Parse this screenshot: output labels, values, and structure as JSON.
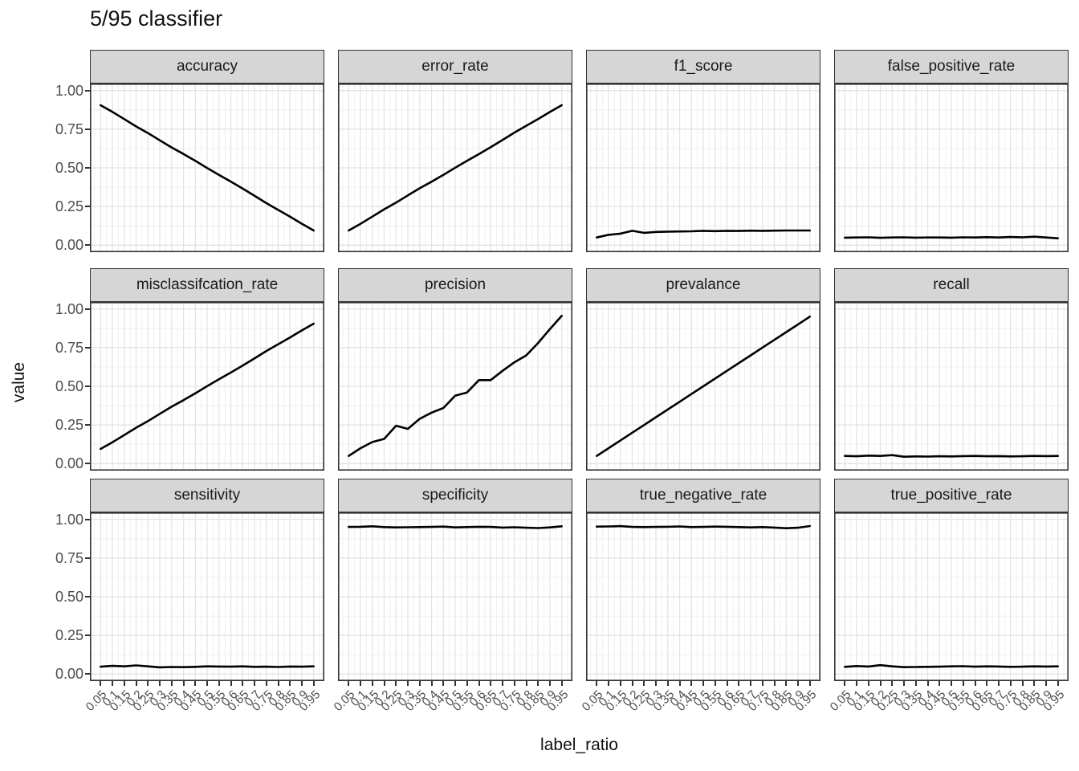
{
  "title": "5/95 classifier",
  "axes": {
    "x_label": "label_ratio",
    "y_label": "value",
    "y_tick_labels": [
      "1.00",
      "0.75",
      "0.50",
      "0.25",
      "0.00"
    ],
    "y_tick_values": [
      1.0,
      0.75,
      0.5,
      0.25,
      0.0
    ],
    "x_tick_labels": [
      "0.05",
      "0.1",
      "0.15",
      "0.2",
      "0.25",
      "0.3",
      "0.35",
      "0.4",
      "0.45",
      "0.5",
      "0.55",
      "0.6",
      "0.65",
      "0.7",
      "0.75",
      "0.8",
      "0.85",
      "0.9",
      "0.95"
    ]
  },
  "colors": {
    "background": "#ffffff",
    "strip_bg": "#d6d6d6",
    "strip_text": "#1a1a1a",
    "panel_border": "#333333",
    "grid_major": "#e4e4e4",
    "grid_minor": "#f0f0f0",
    "line": "#000000",
    "tick_text": "#4d4d4d"
  },
  "chart_data": {
    "type": "line",
    "title": "5/95 classifier",
    "xlabel": "label_ratio",
    "ylabel": "value",
    "ylim": [
      0,
      1
    ],
    "xlim": [
      0.05,
      0.95
    ],
    "grid": true,
    "legend": "none",
    "facet_layout": {
      "rows": 3,
      "cols": 4
    },
    "x": [
      0.05,
      0.1,
      0.15,
      0.2,
      0.25,
      0.3,
      0.35,
      0.4,
      0.45,
      0.5,
      0.55,
      0.6,
      0.65,
      0.7,
      0.75,
      0.8,
      0.85,
      0.9,
      0.95
    ],
    "facets": [
      {
        "name": "accuracy",
        "values": [
          0.905,
          0.862,
          0.815,
          0.768,
          0.725,
          0.678,
          0.632,
          0.59,
          0.545,
          0.499,
          0.455,
          0.411,
          0.366,
          0.32,
          0.272,
          0.228,
          0.185,
          0.139,
          0.095
        ]
      },
      {
        "name": "error_rate",
        "values": [
          0.095,
          0.138,
          0.185,
          0.232,
          0.275,
          0.322,
          0.368,
          0.41,
          0.455,
          0.501,
          0.545,
          0.589,
          0.634,
          0.68,
          0.728,
          0.772,
          0.815,
          0.861,
          0.905
        ]
      },
      {
        "name": "f1_score",
        "values": [
          0.05,
          0.067,
          0.075,
          0.093,
          0.08,
          0.086,
          0.088,
          0.089,
          0.09,
          0.093,
          0.091,
          0.093,
          0.092,
          0.094,
          0.093,
          0.094,
          0.095,
          0.095,
          0.095
        ]
      },
      {
        "name": "false_positive_rate",
        "values": [
          0.049,
          0.05,
          0.051,
          0.048,
          0.05,
          0.051,
          0.049,
          0.05,
          0.05,
          0.049,
          0.051,
          0.05,
          0.052,
          0.05,
          0.053,
          0.051,
          0.055,
          0.05,
          0.045
        ]
      },
      {
        "name": "misclassifcation_rate",
        "values": [
          0.095,
          0.138,
          0.185,
          0.232,
          0.275,
          0.322,
          0.368,
          0.41,
          0.455,
          0.501,
          0.545,
          0.589,
          0.634,
          0.68,
          0.728,
          0.772,
          0.815,
          0.861,
          0.905
        ]
      },
      {
        "name": "precision",
        "values": [
          0.05,
          0.1,
          0.14,
          0.16,
          0.245,
          0.225,
          0.29,
          0.33,
          0.36,
          0.44,
          0.46,
          0.54,
          0.54,
          0.6,
          0.655,
          0.7,
          0.78,
          0.87,
          0.955
        ]
      },
      {
        "name": "prevalance",
        "values": [
          0.05,
          0.1,
          0.15,
          0.2,
          0.25,
          0.3,
          0.35,
          0.4,
          0.45,
          0.5,
          0.55,
          0.6,
          0.65,
          0.7,
          0.75,
          0.8,
          0.85,
          0.9,
          0.95
        ]
      },
      {
        "name": "recall",
        "values": [
          0.05,
          0.048,
          0.052,
          0.05,
          0.055,
          0.045,
          0.047,
          0.046,
          0.048,
          0.047,
          0.049,
          0.05,
          0.048,
          0.049,
          0.047,
          0.048,
          0.05,
          0.049,
          0.05
        ]
      },
      {
        "name": "sensitivity",
        "values": [
          0.048,
          0.053,
          0.05,
          0.056,
          0.05,
          0.044,
          0.046,
          0.045,
          0.047,
          0.05,
          0.049,
          0.048,
          0.05,
          0.047,
          0.048,
          0.046,
          0.049,
          0.048,
          0.05
        ]
      },
      {
        "name": "specificity",
        "values": [
          0.951,
          0.952,
          0.955,
          0.95,
          0.948,
          0.949,
          0.95,
          0.951,
          0.953,
          0.948,
          0.95,
          0.952,
          0.951,
          0.947,
          0.949,
          0.946,
          0.944,
          0.948,
          0.955
        ]
      },
      {
        "name": "true_negative_rate",
        "values": [
          0.953,
          0.954,
          0.956,
          0.951,
          0.95,
          0.951,
          0.952,
          0.954,
          0.95,
          0.951,
          0.953,
          0.952,
          0.95,
          0.948,
          0.95,
          0.947,
          0.943,
          0.946,
          0.957
        ]
      },
      {
        "name": "true_positive_rate",
        "values": [
          0.047,
          0.052,
          0.049,
          0.058,
          0.05,
          0.045,
          0.046,
          0.047,
          0.048,
          0.05,
          0.051,
          0.048,
          0.05,
          0.049,
          0.047,
          0.048,
          0.05,
          0.049,
          0.05
        ]
      }
    ]
  }
}
